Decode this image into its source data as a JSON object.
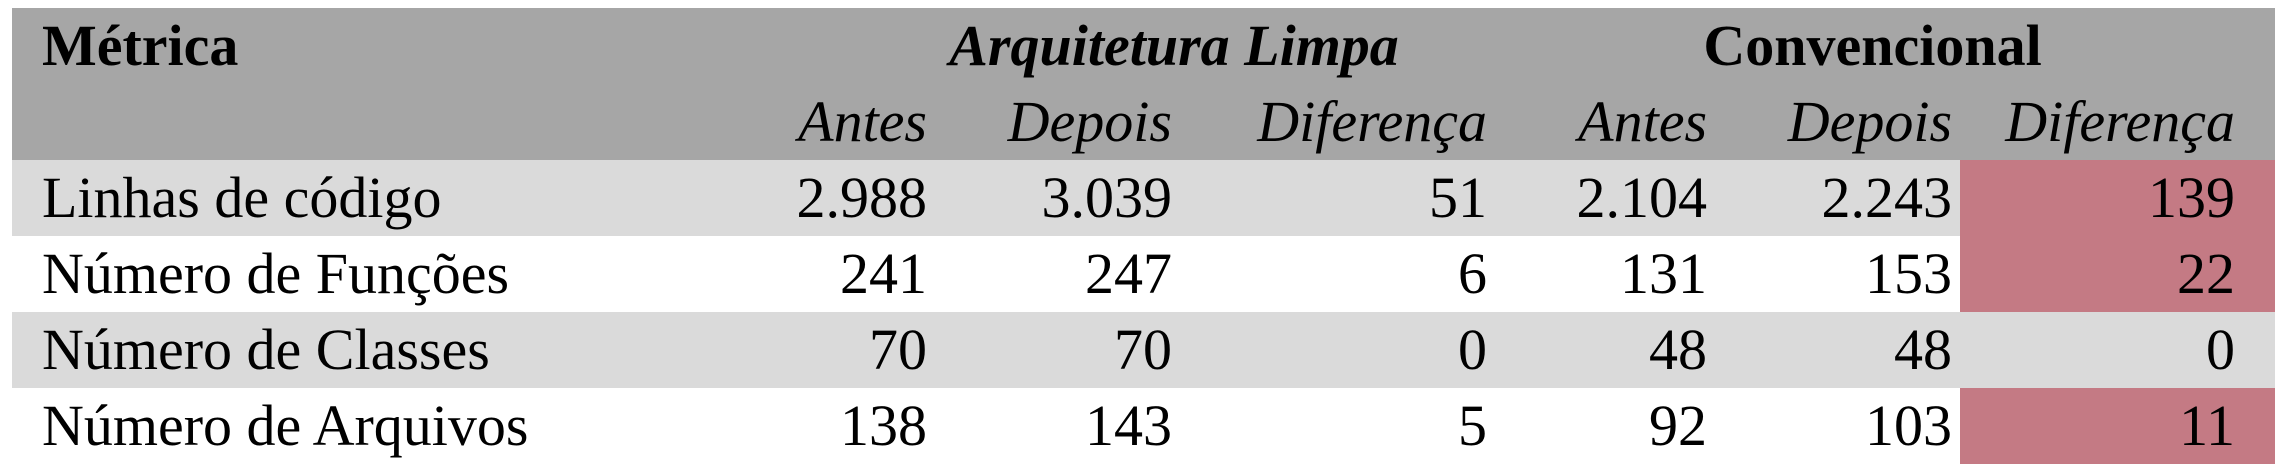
{
  "table": {
    "header": {
      "metric_label": "Métrica",
      "group_clean": "Arquitetura Limpa",
      "group_conventional": "Convencional",
      "sub": [
        "Antes",
        "Depois",
        "Diferença",
        "Antes",
        "Depois",
        "Diferença"
      ]
    },
    "rows": [
      {
        "label": "Linhas de código",
        "values": [
          "2.988",
          "3.039",
          "51",
          "2.104",
          "2.243",
          "139"
        ],
        "highlight_last": true
      },
      {
        "label": "Número de Funções",
        "values": [
          "241",
          "247",
          "6",
          "131",
          "153",
          "22"
        ],
        "highlight_last": true
      },
      {
        "label": "Número de Classes",
        "values": [
          "70",
          "70",
          "0",
          "48",
          "48",
          "0"
        ],
        "highlight_last": false
      },
      {
        "label": "Número de Arquivos",
        "values": [
          "138",
          "143",
          "5",
          "92",
          "103",
          "11"
        ],
        "highlight_last": true
      }
    ],
    "colors": {
      "header_bg": "#a6a6a6",
      "stripe_bg": "#dadada",
      "highlight_bg": "#c47a84"
    }
  }
}
